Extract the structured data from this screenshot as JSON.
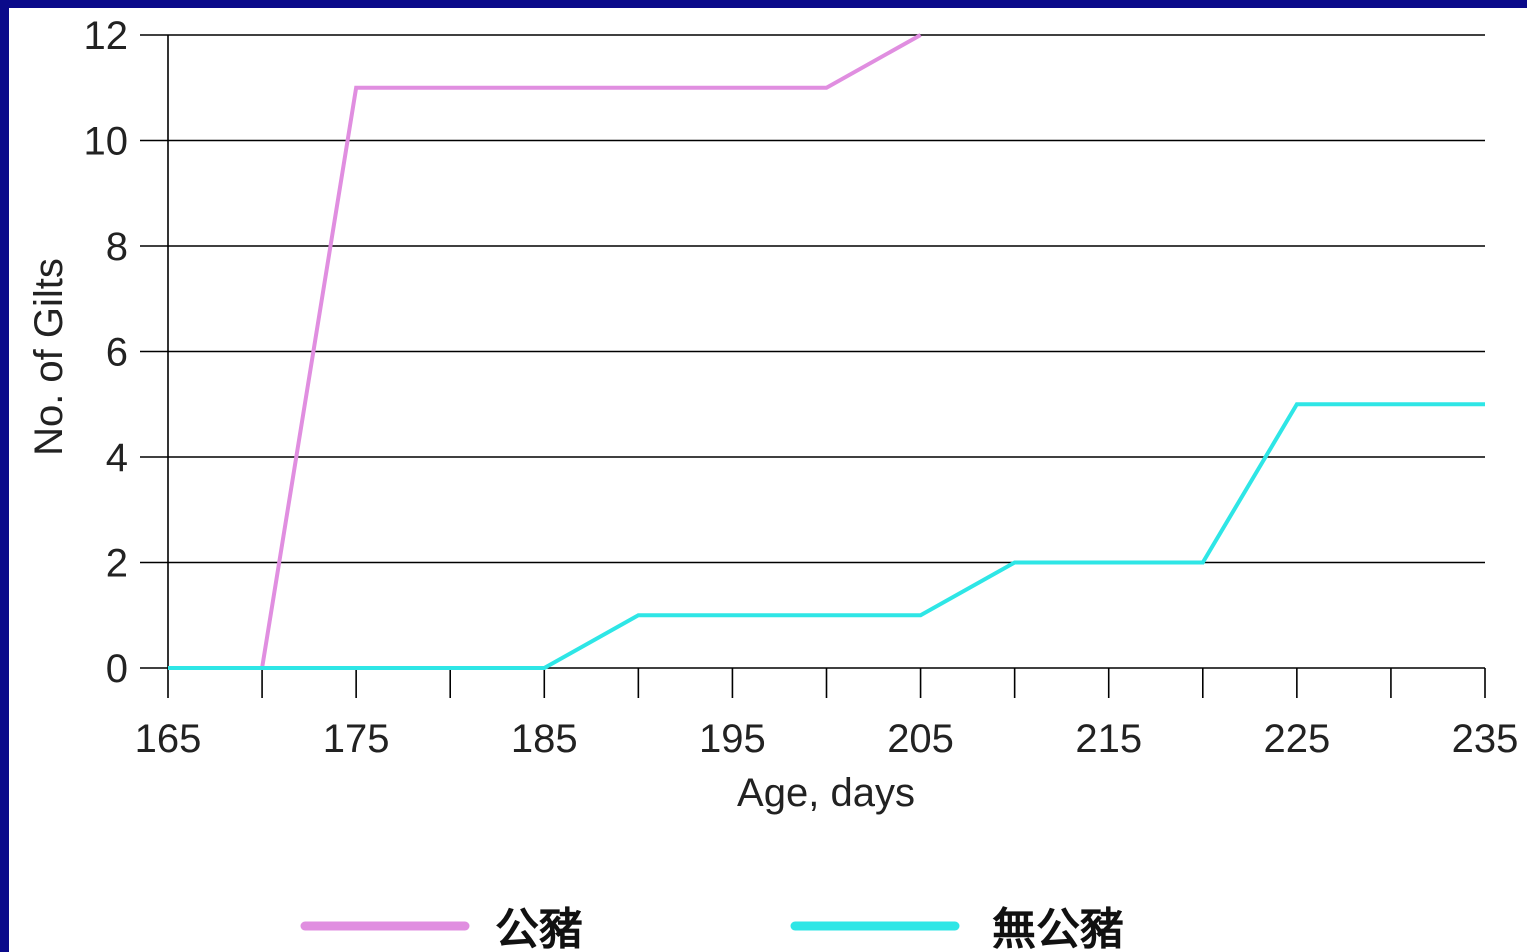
{
  "chart_data": {
    "type": "line",
    "xlabel": "Age, days",
    "ylabel": "No. of Gilts",
    "xlim": [
      165,
      235
    ],
    "ylim": [
      0,
      12
    ],
    "x_ticks": [
      165,
      175,
      185,
      195,
      205,
      215,
      225,
      235
    ],
    "x_minor_ticks": [
      170,
      180,
      190,
      200,
      210,
      220,
      230
    ],
    "y_ticks": [
      0,
      2,
      4,
      6,
      8,
      10,
      12
    ],
    "grid": "horizontal",
    "legend_position": "bottom",
    "series": [
      {
        "name": "公豬",
        "color": "#e08ee0",
        "x": [
          165,
          170,
          175,
          180,
          185,
          190,
          195,
          200,
          205
        ],
        "y": [
          0,
          0,
          11,
          11,
          11,
          11,
          11,
          11,
          12
        ]
      },
      {
        "name": "無公豬",
        "color": "#2ee6e6",
        "x": [
          165,
          170,
          175,
          180,
          185,
          190,
          195,
          200,
          205,
          210,
          215,
          220,
          225,
          230,
          235
        ],
        "y": [
          0,
          0,
          0,
          0,
          0,
          1,
          1,
          1,
          1,
          2,
          2,
          2,
          5,
          5,
          5
        ]
      }
    ]
  }
}
